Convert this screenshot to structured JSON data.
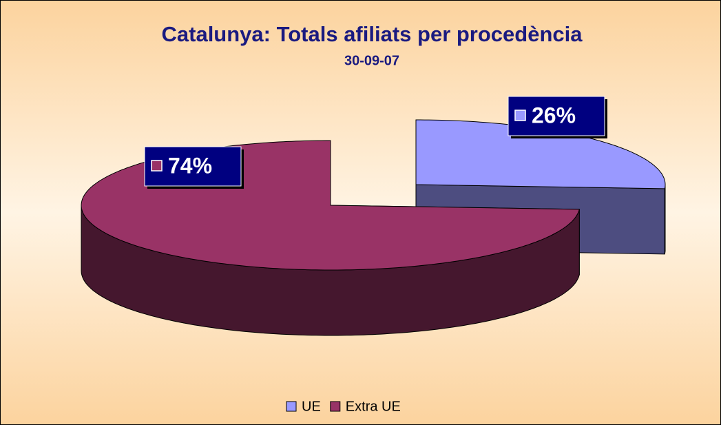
{
  "chart_data": {
    "type": "pie3d",
    "title": "Catalunya: Totals afiliats per procedència",
    "subtitle": "30-09-07",
    "categories": [
      "UE",
      "Extra UE"
    ],
    "values": [
      26,
      74
    ],
    "value_labels": [
      "26%",
      "74%"
    ],
    "colors": [
      "#9999ff",
      "#993366"
    ],
    "legend": "bottom"
  }
}
